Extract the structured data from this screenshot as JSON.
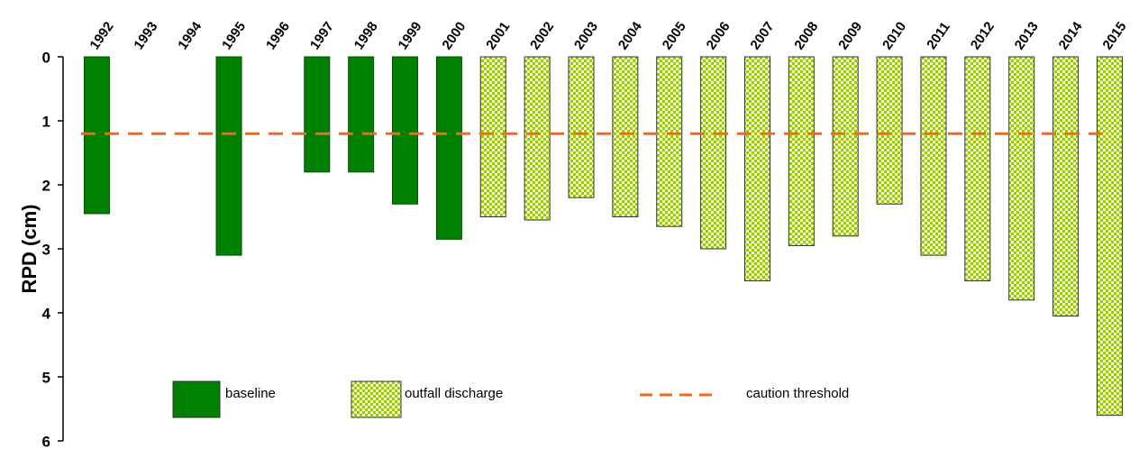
{
  "chart_data": {
    "type": "bar",
    "y_label": "RPD (cm)",
    "categories": [
      "1992",
      "1993",
      "1994",
      "1995",
      "1996",
      "1997",
      "1998",
      "1999",
      "2000",
      "2001",
      "2002",
      "2003",
      "2004",
      "2005",
      "2006",
      "2007",
      "2008",
      "2009",
      "2010",
      "2011",
      "2012",
      "2013",
      "2014",
      "2015"
    ],
    "series": [
      {
        "name": "baseline",
        "color": "#008000",
        "pattern": "solid",
        "values": [
          2.45,
          null,
          null,
          3.1,
          null,
          1.8,
          1.8,
          2.3,
          2.85,
          null,
          null,
          null,
          null,
          null,
          null,
          null,
          null,
          null,
          null,
          null,
          null,
          null,
          null,
          null
        ]
      },
      {
        "name": "outfall discharge",
        "color": "#99cc00",
        "pattern": "checker",
        "values": [
          null,
          null,
          null,
          null,
          null,
          null,
          null,
          null,
          null,
          2.5,
          2.55,
          2.2,
          2.5,
          2.65,
          3.0,
          3.5,
          2.95,
          2.8,
          2.3,
          3.1,
          3.5,
          3.8,
          4.05,
          5.6
        ]
      }
    ],
    "threshold": {
      "name": "caution threshold",
      "value": 1.2,
      "color": "#f26b1d"
    },
    "ylim": [
      0,
      6
    ],
    "yticks": [
      0,
      1,
      2,
      3,
      4,
      5,
      6
    ],
    "y_inverted": true,
    "grid": false
  }
}
